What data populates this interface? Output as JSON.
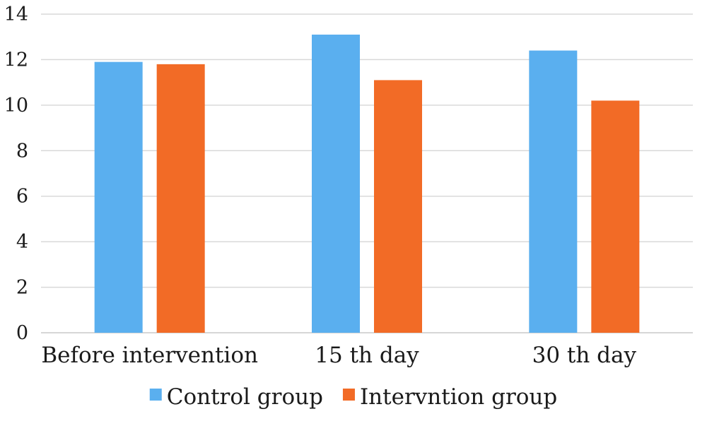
{
  "chart_data": {
    "type": "bar",
    "categories": [
      "Before intervention",
      "15 th day",
      "30 th day"
    ],
    "series": [
      {
        "name": "Control group",
        "values": [
          11.9,
          13.1,
          12.4
        ],
        "color": "#5aafef"
      },
      {
        "name": "Intervntion group",
        "values": [
          11.8,
          11.1,
          10.2
        ],
        "color": "#f26b26"
      }
    ],
    "ylim": [
      0,
      14
    ],
    "yticks": [
      0,
      2,
      4,
      6,
      8,
      10,
      12,
      14
    ],
    "grid": true,
    "legend": "bottom-center"
  }
}
